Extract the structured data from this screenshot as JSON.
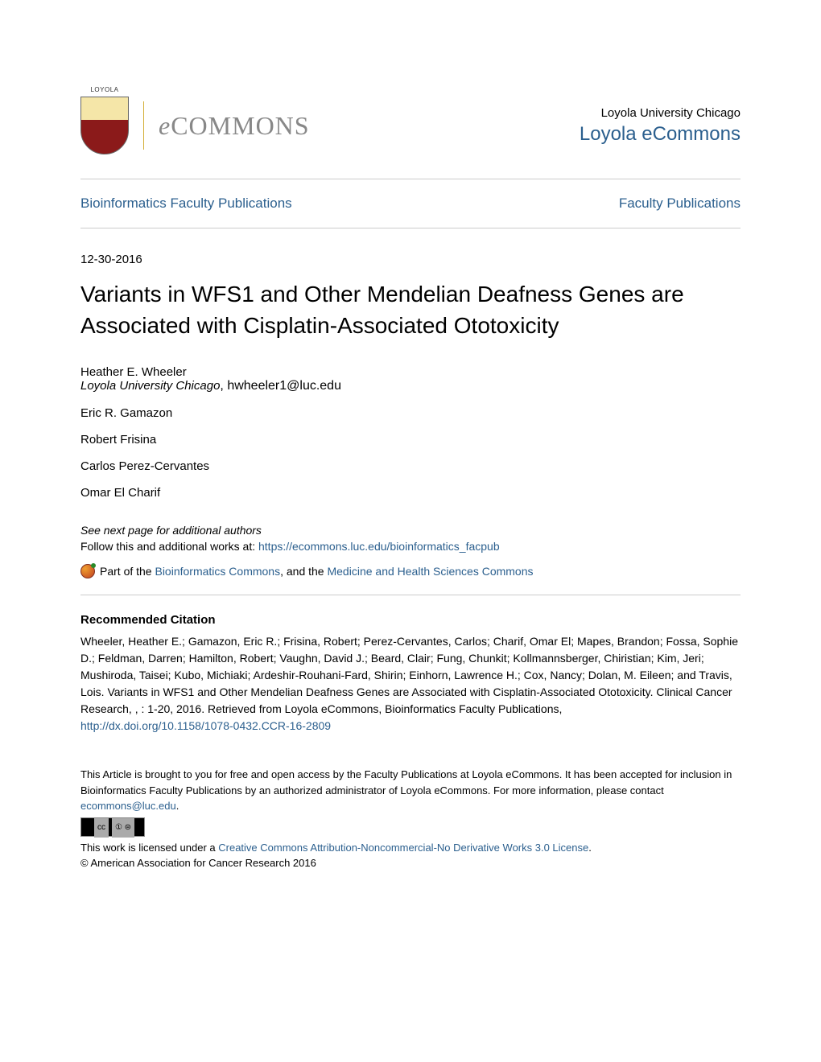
{
  "header": {
    "logo_text": "COMMONS",
    "university": "Loyola University Chicago",
    "repository": "Loyola eCommons"
  },
  "breadcrumb": {
    "left": "Bioinformatics Faculty Publications",
    "right": "Faculty Publications"
  },
  "date": "12-30-2016",
  "title": "Variants in WFS1 and Other Mendelian Deafness Genes are Associated with Cisplatin-Associated Ototoxicity",
  "authors": [
    {
      "name": "Heather E. Wheeler",
      "affil": "Loyola University Chicago",
      "email": ", hwheeler1@luc.edu"
    },
    {
      "name": "Eric R. Gamazon",
      "affil": "",
      "email": ""
    },
    {
      "name": "Robert Frisina",
      "affil": "",
      "email": ""
    },
    {
      "name": "Carlos Perez-Cervantes",
      "affil": "",
      "email": ""
    },
    {
      "name": "Omar El Charif",
      "affil": "",
      "email": ""
    }
  ],
  "see_next": "See next page for additional authors",
  "follow_prefix": "Follow this and additional works at: ",
  "follow_url": "https://ecommons.luc.edu/bioinformatics_facpub",
  "part_of": {
    "prefix": "Part of the ",
    "link1": "Bioinformatics Commons",
    "middle": ", and the ",
    "link2": "Medicine and Health Sciences Commons"
  },
  "citation": {
    "heading": "Recommended Citation",
    "text": "Wheeler, Heather E.; Gamazon, Eric R.; Frisina, Robert; Perez-Cervantes, Carlos; Charif, Omar El; Mapes, Brandon; Fossa, Sophie D.; Feldman, Darren; Hamilton, Robert; Vaughn, David J.; Beard, Clair; Fung, Chunkit; Kollmannsberger, Chiristian; Kim, Jeri; Mushiroda, Taisei; Kubo, Michiaki; Ardeshir-Rouhani-Fard, Shirin; Einhorn, Lawrence H.; Cox, Nancy; Dolan, M. Eileen; and Travis, Lois. Variants in WFS1 and Other Mendelian Deafness Genes are Associated with Cisplatin-Associated Ototoxicity. Clinical Cancer Research, , : 1-20, 2016. Retrieved from Loyola eCommons, Bioinformatics Faculty Publications, ",
    "doi": "http://dx.doi.org/10.1158/1078-0432.CCR-16-2809"
  },
  "footer": {
    "access_text": "This Article is brought to you for free and open access by the Faculty Publications at Loyola eCommons. It has been accepted for inclusion in Bioinformatics Faculty Publications by an authorized administrator of Loyola eCommons. For more information, please contact ",
    "contact_email": "ecommons@luc.edu",
    "period": ".",
    "cc_label": "cc",
    "cc_icons": "① ⊜",
    "license_prefix": "This work is licensed under a ",
    "license_link": "Creative Commons Attribution-Noncommercial-No Derivative Works 3.0 License",
    "license_suffix": ".",
    "copyright": "© American Association for Cancer Research 2016"
  }
}
